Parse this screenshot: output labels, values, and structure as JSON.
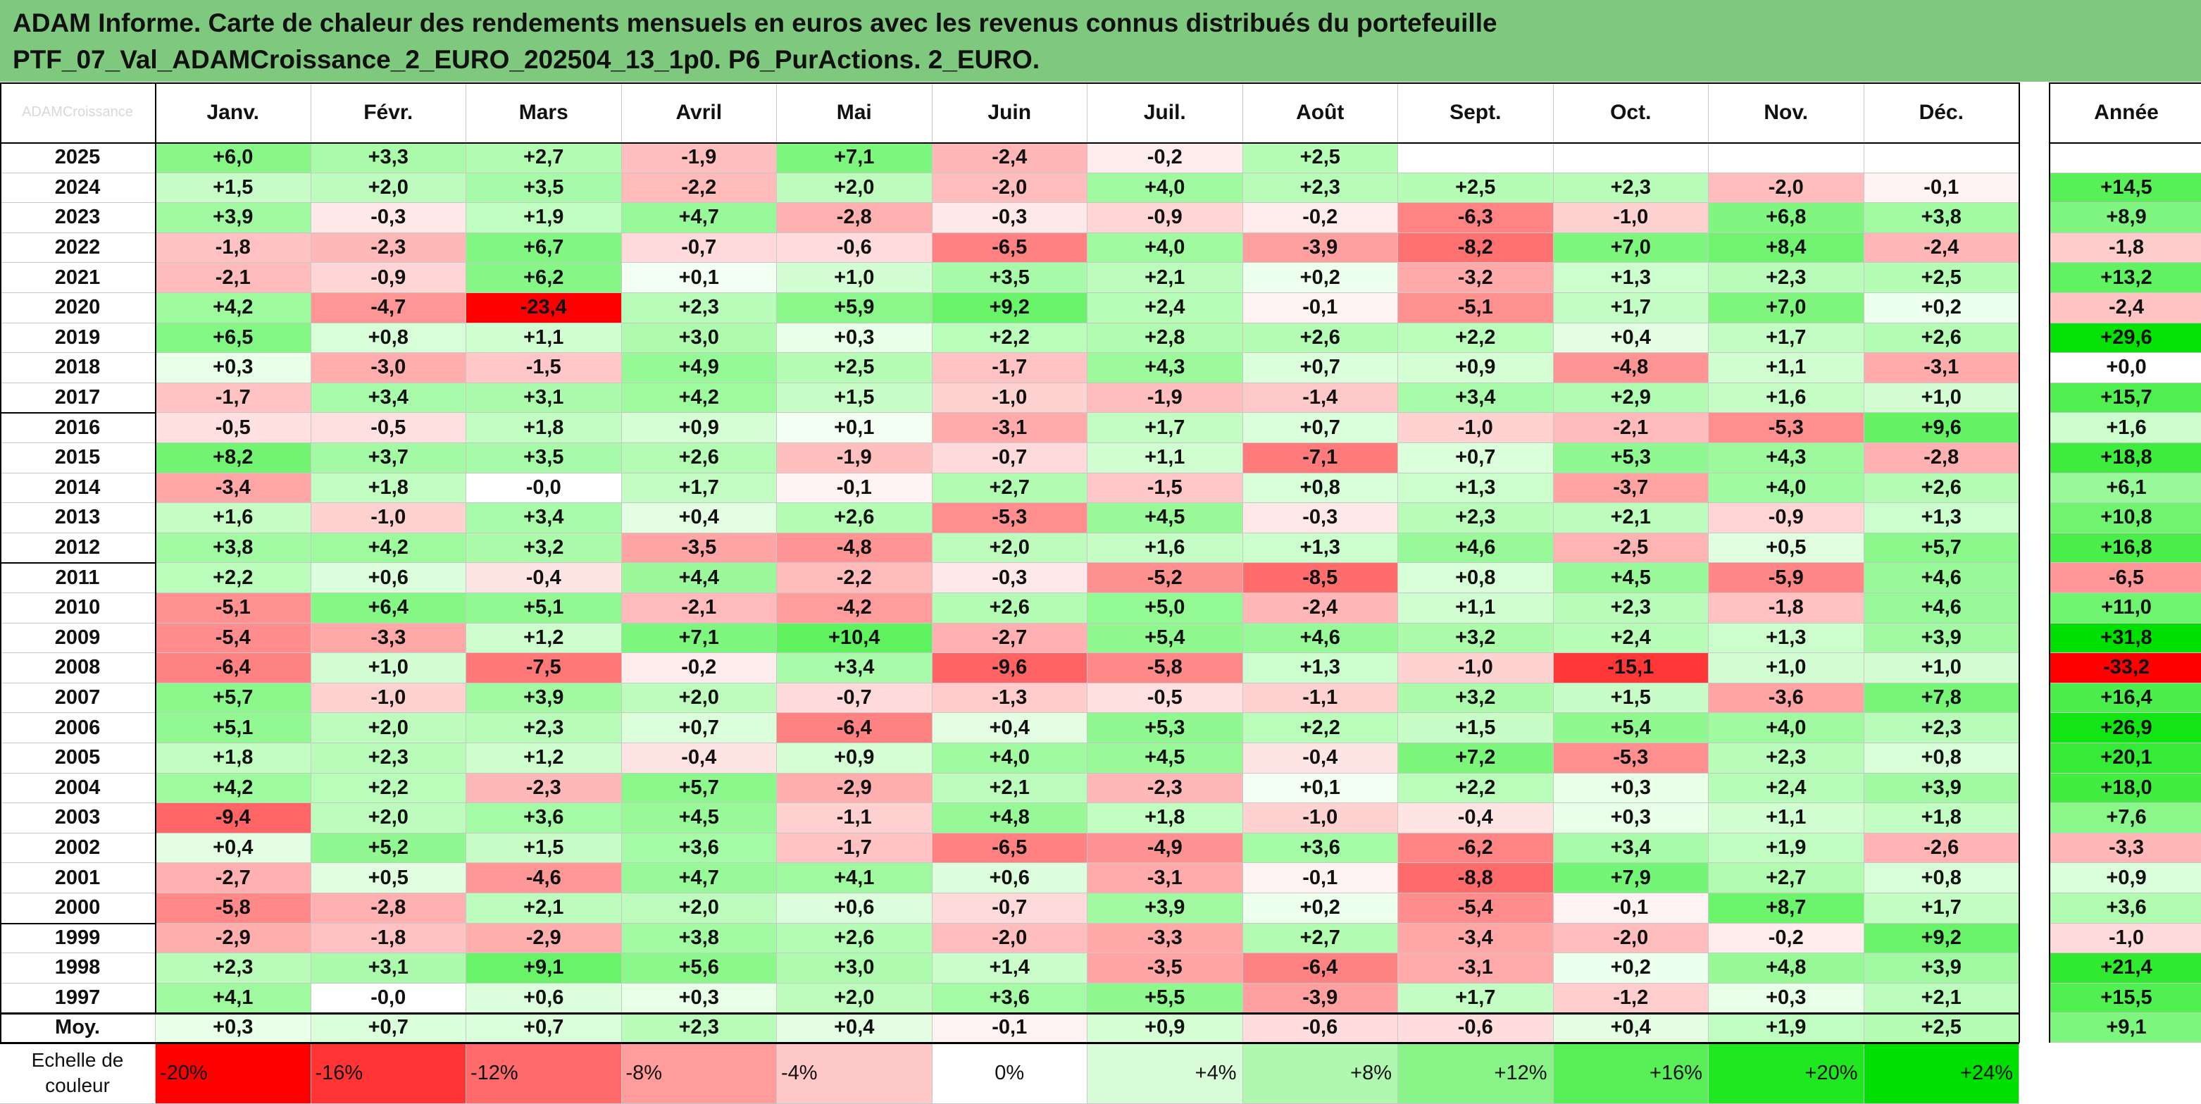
{
  "title": {
    "line1": "ADAM Informe. Carte de chaleur des rendements mensuels en euros avec les revenus connus distribués du portefeuille",
    "line2": "PTF_07_Val_ADAMCroissance_2_EURO_202504_13_1p0. P6_PurActions. 2_EURO."
  },
  "corner_label": "ADAMCroissance",
  "colors": {
    "header_band": "#7fc97f",
    "scale_neg": [
      "#ff0000",
      "#ff3b3b",
      "#ff6b6b",
      "#ff9a9a",
      "#ffc9c9"
    ],
    "zero": "#ffffff",
    "scale_pos": [
      "#d9fbd9",
      "#b2f7b2",
      "#8cf58c",
      "#5cf05c",
      "#22ea22",
      "#00e000"
    ]
  },
  "chart_data": {
    "type": "heatmap",
    "columns": [
      "Janv.",
      "Févr.",
      "Mars",
      "Avril",
      "Mai",
      "Juin",
      "Juil.",
      "Août",
      "Sept.",
      "Oct.",
      "Nov.",
      "Déc."
    ],
    "annual_column": "Année",
    "rows": [
      {
        "year": "2025",
        "values": [
          "+6,0",
          "+3,3",
          "+2,7",
          "-1,9",
          "+7,1",
          "-2,4",
          "-0,2",
          "+2,5",
          "",
          "",
          "",
          ""
        ],
        "annual": ""
      },
      {
        "year": "2024",
        "values": [
          "+1,5",
          "+2,0",
          "+3,5",
          "-2,2",
          "+2,0",
          "-2,0",
          "+4,0",
          "+2,3",
          "+2,5",
          "+2,3",
          "-2,0",
          "-0,1"
        ],
        "annual": "+14,5"
      },
      {
        "year": "2023",
        "values": [
          "+3,9",
          "-0,3",
          "+1,9",
          "+4,7",
          "-2,8",
          "-0,3",
          "-0,9",
          "-0,2",
          "-6,3",
          "-1,0",
          "+6,8",
          "+3,8"
        ],
        "annual": "+8,9"
      },
      {
        "year": "2022",
        "values": [
          "-1,8",
          "-2,3",
          "+6,7",
          "-0,7",
          "-0,6",
          "-6,5",
          "+4,0",
          "-3,9",
          "-8,2",
          "+7,0",
          "+8,4",
          "-2,4"
        ],
        "annual": "-1,8"
      },
      {
        "year": "2021",
        "values": [
          "-2,1",
          "-0,9",
          "+6,2",
          "+0,1",
          "+1,0",
          "+3,5",
          "+2,1",
          "+0,2",
          "-3,2",
          "+1,3",
          "+2,3",
          "+2,5"
        ],
        "annual": "+13,2"
      },
      {
        "year": "2020",
        "values": [
          "+4,2",
          "-4,7",
          "-23,4",
          "+2,3",
          "+5,9",
          "+9,2",
          "+2,4",
          "-0,1",
          "-5,1",
          "+1,7",
          "+7,0",
          "+0,2"
        ],
        "annual": "-2,4"
      },
      {
        "year": "2019",
        "values": [
          "+6,5",
          "+0,8",
          "+1,1",
          "+3,0",
          "+0,3",
          "+2,2",
          "+2,8",
          "+2,6",
          "+2,2",
          "+0,4",
          "+1,7",
          "+2,6"
        ],
        "annual": "+29,6"
      },
      {
        "year": "2018",
        "values": [
          "+0,3",
          "-3,0",
          "-1,5",
          "+4,9",
          "+2,5",
          "-1,7",
          "+4,3",
          "+0,7",
          "+0,9",
          "-4,8",
          "+1,1",
          "-3,1"
        ],
        "annual": "+0,0"
      },
      {
        "year": "2017",
        "values": [
          "-1,7",
          "+3,4",
          "+3,1",
          "+4,2",
          "+1,5",
          "-1,0",
          "-1,9",
          "-1,4",
          "+3,4",
          "+2,9",
          "+1,6",
          "+1,0"
        ],
        "annual": "+15,7"
      },
      {
        "year": "2016",
        "values": [
          "-0,5",
          "-0,5",
          "+1,8",
          "+0,9",
          "+0,1",
          "-3,1",
          "+1,7",
          "+0,7",
          "-1,0",
          "-2,1",
          "-5,3",
          "+9,6"
        ],
        "annual": "+1,6"
      },
      {
        "year": "2015",
        "values": [
          "+8,2",
          "+3,7",
          "+3,5",
          "+2,6",
          "-1,9",
          "-0,7",
          "+1,1",
          "-7,1",
          "+0,7",
          "+5,3",
          "+4,3",
          "-2,8"
        ],
        "annual": "+18,8"
      },
      {
        "year": "2014",
        "values": [
          "-3,4",
          "+1,8",
          "-0,0",
          "+1,7",
          "-0,1",
          "+2,7",
          "-1,5",
          "+0,8",
          "+1,3",
          "-3,7",
          "+4,0",
          "+2,6"
        ],
        "annual": "+6,1"
      },
      {
        "year": "2013",
        "values": [
          "+1,6",
          "-1,0",
          "+3,4",
          "+0,4",
          "+2,6",
          "-5,3",
          "+4,5",
          "-0,3",
          "+2,3",
          "+2,1",
          "-0,9",
          "+1,3"
        ],
        "annual": "+10,8"
      },
      {
        "year": "2012",
        "values": [
          "+3,8",
          "+4,2",
          "+3,2",
          "-3,5",
          "-4,8",
          "+2,0",
          "+1,6",
          "+1,3",
          "+4,6",
          "-2,5",
          "+0,5",
          "+5,7"
        ],
        "annual": "+16,8"
      },
      {
        "year": "2011",
        "values": [
          "+2,2",
          "+0,6",
          "-0,4",
          "+4,4",
          "-2,2",
          "-0,3",
          "-5,2",
          "-8,5",
          "+0,8",
          "+4,5",
          "-5,9",
          "+4,6"
        ],
        "annual": "-6,5"
      },
      {
        "year": "2010",
        "values": [
          "-5,1",
          "+6,4",
          "+5,1",
          "-2,1",
          "-4,2",
          "+2,6",
          "+5,0",
          "-2,4",
          "+1,1",
          "+2,3",
          "-1,8",
          "+4,6"
        ],
        "annual": "+11,0"
      },
      {
        "year": "2009",
        "values": [
          "-5,4",
          "-3,3",
          "+1,2",
          "+7,1",
          "+10,4",
          "-2,7",
          "+5,4",
          "+4,6",
          "+3,2",
          "+2,4",
          "+1,3",
          "+3,9"
        ],
        "annual": "+31,8"
      },
      {
        "year": "2008",
        "values": [
          "-6,4",
          "+1,0",
          "-7,5",
          "-0,2",
          "+3,4",
          "-9,6",
          "-5,8",
          "+1,3",
          "-1,0",
          "-15,1",
          "+1,0",
          "+1,0"
        ],
        "annual": "-33,2"
      },
      {
        "year": "2007",
        "values": [
          "+5,7",
          "-1,0",
          "+3,9",
          "+2,0",
          "-0,7",
          "-1,3",
          "-0,5",
          "-1,1",
          "+3,2",
          "+1,5",
          "-3,6",
          "+7,8"
        ],
        "annual": "+16,4"
      },
      {
        "year": "2006",
        "values": [
          "+5,1",
          "+2,0",
          "+2,3",
          "+0,7",
          "-6,4",
          "+0,4",
          "+5,3",
          "+2,2",
          "+1,5",
          "+5,4",
          "+4,0",
          "+2,3"
        ],
        "annual": "+26,9"
      },
      {
        "year": "2005",
        "values": [
          "+1,8",
          "+2,3",
          "+1,2",
          "-0,4",
          "+0,9",
          "+4,0",
          "+4,5",
          "-0,4",
          "+7,2",
          "-5,3",
          "+2,3",
          "+0,8"
        ],
        "annual": "+20,1"
      },
      {
        "year": "2004",
        "values": [
          "+4,2",
          "+2,2",
          "-2,3",
          "+5,7",
          "-2,9",
          "+2,1",
          "-2,3",
          "+0,1",
          "+2,2",
          "+0,3",
          "+2,4",
          "+3,9"
        ],
        "annual": "+18,0"
      },
      {
        "year": "2003",
        "values": [
          "-9,4",
          "+2,0",
          "+3,6",
          "+4,5",
          "-1,1",
          "+4,8",
          "+1,8",
          "-1,0",
          "-0,4",
          "+0,3",
          "+1,1",
          "+1,8"
        ],
        "annual": "+7,6"
      },
      {
        "year": "2002",
        "values": [
          "+0,4",
          "+5,2",
          "+1,5",
          "+3,6",
          "-1,7",
          "-6,5",
          "-4,9",
          "+3,6",
          "-6,2",
          "+3,4",
          "+1,9",
          "-2,6"
        ],
        "annual": "-3,3"
      },
      {
        "year": "2001",
        "values": [
          "-2,7",
          "+0,5",
          "-4,6",
          "+4,7",
          "+4,1",
          "+0,6",
          "-3,1",
          "-0,1",
          "-8,8",
          "+7,9",
          "+2,7",
          "+0,8"
        ],
        "annual": "+0,9"
      },
      {
        "year": "2000",
        "values": [
          "-5,8",
          "-2,8",
          "+2,1",
          "+2,0",
          "+0,6",
          "-0,7",
          "+3,9",
          "+0,2",
          "-5,4",
          "-0,1",
          "+8,7",
          "+1,7"
        ],
        "annual": "+3,6"
      },
      {
        "year": "1999",
        "values": [
          "-2,9",
          "-1,8",
          "-2,9",
          "+3,8",
          "+2,6",
          "-2,0",
          "-3,3",
          "+2,7",
          "-3,4",
          "-2,0",
          "-0,2",
          "+9,2"
        ],
        "annual": "-1,0"
      },
      {
        "year": "1998",
        "values": [
          "+2,3",
          "+3,1",
          "+9,1",
          "+5,6",
          "+3,0",
          "+1,4",
          "-3,5",
          "-6,4",
          "-3,1",
          "+0,2",
          "+4,8",
          "+3,9"
        ],
        "annual": "+21,4"
      },
      {
        "year": "1997",
        "values": [
          "+4,1",
          "-0,0",
          "+0,6",
          "+0,3",
          "+2,0",
          "+3,6",
          "+5,5",
          "-3,9",
          "+1,7",
          "-1,2",
          "+0,3",
          "+2,1"
        ],
        "annual": "+15,5"
      }
    ],
    "average_row": {
      "label": "Moy.",
      "values": [
        "+0,3",
        "+0,7",
        "+0,7",
        "+2,3",
        "+0,4",
        "-0,1",
        "+0,9",
        "-0,6",
        "-0,6",
        "+0,4",
        "+1,9",
        "+2,5"
      ],
      "annual": "+9,1"
    },
    "scale": {
      "title_line1": "Echelle de",
      "title_line2": "couleur",
      "labels": [
        "-20%",
        "-16%",
        "-12%",
        "-8%",
        "-4%",
        "0%",
        "+4%",
        "+8%",
        "+12%",
        "+16%",
        "+20%",
        "+24%"
      ],
      "values": [
        -20,
        -16,
        -12,
        -8,
        -4,
        0,
        4,
        8,
        12,
        16,
        20,
        24
      ]
    }
  }
}
